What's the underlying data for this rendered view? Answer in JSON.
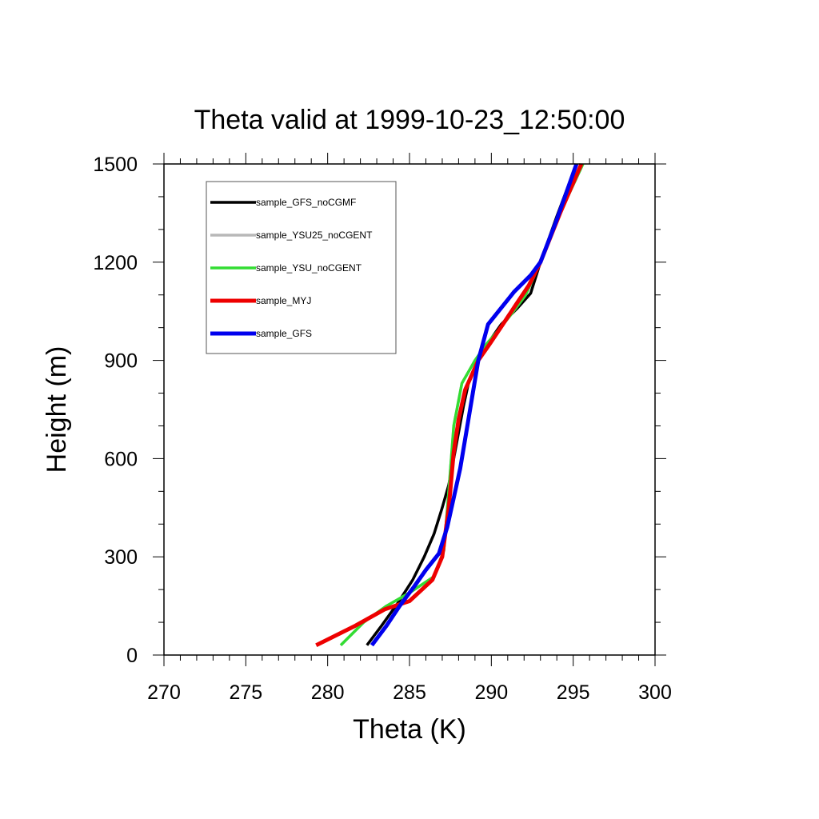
{
  "chart_data": {
    "type": "line",
    "title": "Theta valid at 1999-10-23_12:50:00",
    "xlabel": "Theta (K)",
    "ylabel": "Height (m)",
    "xlim": [
      270,
      300
    ],
    "ylim": [
      0,
      1500
    ],
    "x_major_ticks": [
      270,
      275,
      280,
      285,
      290,
      295,
      300
    ],
    "x_tick_labels": [
      "270",
      "275",
      "280",
      "285",
      "290",
      "295",
      "300"
    ],
    "y_major_ticks": [
      0,
      300,
      600,
      900,
      1200,
      1500
    ],
    "y_tick_labels": [
      "0",
      "300",
      "600",
      "900",
      "1200",
      "1500"
    ],
    "x_minor_step": 1,
    "y_minor_step": 100,
    "grid": false,
    "legend_position": "top-left",
    "series": [
      {
        "name": "sample_GFS_noCGMF",
        "color": "#000000",
        "points": [
          [
            282.4,
            30
          ],
          [
            283.3,
            90
          ],
          [
            284.3,
            160
          ],
          [
            285.2,
            230
          ],
          [
            285.9,
            300
          ],
          [
            286.5,
            370
          ],
          [
            287.0,
            450
          ],
          [
            287.4,
            520
          ],
          [
            287.7,
            600
          ],
          [
            288.0,
            680
          ],
          [
            288.3,
            760
          ],
          [
            288.6,
            830
          ],
          [
            289.2,
            900
          ],
          [
            289.9,
            960
          ],
          [
            290.6,
            1010
          ],
          [
            291.6,
            1060
          ],
          [
            292.4,
            1105
          ],
          [
            293.0,
            1200
          ],
          [
            294.0,
            1340
          ],
          [
            295.2,
            1500
          ]
        ]
      },
      {
        "name": "sample_YSU25_noCGENT",
        "color": "#b8b8b8",
        "points": [
          [
            280.8,
            30
          ],
          [
            282.2,
            100
          ],
          [
            283.6,
            150
          ],
          [
            285.0,
            190
          ],
          [
            286.5,
            240
          ],
          [
            287.1,
            320
          ],
          [
            287.4,
            500
          ],
          [
            287.7,
            700
          ],
          [
            288.2,
            830
          ],
          [
            289.0,
            900
          ],
          [
            289.7,
            950
          ],
          [
            290.4,
            990
          ],
          [
            291.2,
            1040
          ],
          [
            292.1,
            1100
          ],
          [
            293.0,
            1200
          ],
          [
            294.2,
            1350
          ],
          [
            295.6,
            1500
          ]
        ]
      },
      {
        "name": "sample_YSU_noCGENT",
        "color": "#33dd33",
        "points": [
          [
            280.8,
            30
          ],
          [
            282.2,
            100
          ],
          [
            283.6,
            150
          ],
          [
            285.0,
            190
          ],
          [
            286.5,
            240
          ],
          [
            287.1,
            320
          ],
          [
            287.4,
            500
          ],
          [
            287.7,
            700
          ],
          [
            288.2,
            830
          ],
          [
            289.0,
            900
          ],
          [
            289.7,
            950
          ],
          [
            290.4,
            990
          ],
          [
            291.2,
            1040
          ],
          [
            292.1,
            1100
          ],
          [
            293.0,
            1200
          ],
          [
            294.2,
            1350
          ],
          [
            295.6,
            1500
          ]
        ]
      },
      {
        "name": "sample_MYJ",
        "color": "#ee0000",
        "points": [
          [
            279.3,
            30
          ],
          [
            281.7,
            90
          ],
          [
            283.5,
            140
          ],
          [
            285.0,
            165
          ],
          [
            286.4,
            230
          ],
          [
            287.0,
            300
          ],
          [
            287.4,
            450
          ],
          [
            287.7,
            620
          ],
          [
            288.0,
            720
          ],
          [
            288.4,
            810
          ],
          [
            289.2,
            900
          ],
          [
            289.9,
            950
          ],
          [
            290.7,
            1010
          ],
          [
            291.5,
            1070
          ],
          [
            292.3,
            1130
          ],
          [
            293.0,
            1200
          ],
          [
            294.2,
            1350
          ],
          [
            295.5,
            1500
          ]
        ]
      },
      {
        "name": "sample_GFS",
        "color": "#0000ee",
        "points": [
          [
            282.7,
            30
          ],
          [
            283.6,
            90
          ],
          [
            284.4,
            150
          ],
          [
            285.3,
            210
          ],
          [
            286.0,
            260
          ],
          [
            286.8,
            310
          ],
          [
            287.3,
            390
          ],
          [
            287.7,
            480
          ],
          [
            288.1,
            570
          ],
          [
            288.4,
            660
          ],
          [
            288.8,
            780
          ],
          [
            289.2,
            900
          ],
          [
            289.8,
            1010
          ],
          [
            290.6,
            1060
          ],
          [
            291.4,
            1110
          ],
          [
            292.4,
            1160
          ],
          [
            293.0,
            1200
          ],
          [
            294.0,
            1330
          ],
          [
            295.2,
            1500
          ]
        ]
      }
    ]
  }
}
